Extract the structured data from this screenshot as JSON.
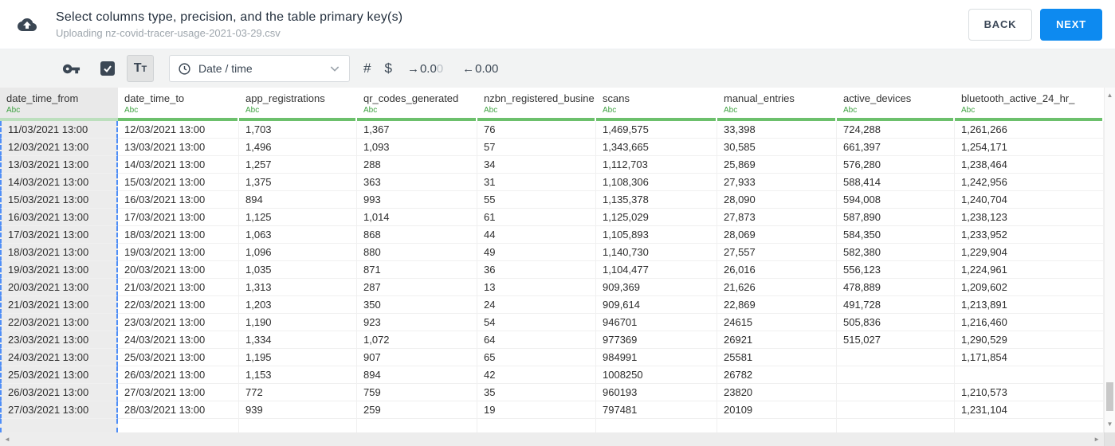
{
  "header": {
    "title": "Select columns type, precision, and the table primary key(s)",
    "subtitle": "Uploading nz-covid-tracer-usage-2021-03-29.csv",
    "back_label": "BACK",
    "next_label": "NEXT"
  },
  "toolbar": {
    "text_type_button": "Tt",
    "type_dropdown_value": "Date / time",
    "number_symbol": "#",
    "currency_symbol": "$",
    "precision_increase": {
      "arrow": "→",
      "value": "0.0",
      "muted": "0"
    },
    "precision_decrease": {
      "arrow": "←",
      "value": "0.00"
    },
    "primary_key_checkbox_checked": true
  },
  "icons": {
    "upload_icon": "cloud-upload",
    "key_icon": "key",
    "checkbox_check_icon": "✓",
    "clock_icon": "clock",
    "chevron_down_icon": "⌄",
    "scroll_up_icon": "▲",
    "scroll_down_icon": "▼",
    "scroll_left_icon": "◄",
    "scroll_right_icon": "►"
  },
  "table": {
    "columns": [
      {
        "name": "date_time_from",
        "type": "Abc",
        "selected": true
      },
      {
        "name": "date_time_to",
        "type": "Abc",
        "selected": false
      },
      {
        "name": "app_registrations",
        "type": "Abc",
        "selected": false
      },
      {
        "name": "qr_codes_generated",
        "type": "Abc",
        "selected": false
      },
      {
        "name": "nzbn_registered_busine",
        "type": "Abc",
        "selected": false
      },
      {
        "name": "scans",
        "type": "Abc",
        "selected": false
      },
      {
        "name": "manual_entries",
        "type": "Abc",
        "selected": false
      },
      {
        "name": "active_devices",
        "type": "Abc",
        "selected": false
      },
      {
        "name": "bluetooth_active_24_hr_",
        "type": "Abc",
        "selected": false
      }
    ],
    "rows": [
      [
        "11/03/2021 13:00",
        "12/03/2021 13:00",
        "1,703",
        "1,367",
        "76",
        "1,469,575",
        "33,398",
        "724,288",
        "1,261,266"
      ],
      [
        "12/03/2021 13:00",
        "13/03/2021 13:00",
        "1,496",
        "1,093",
        "57",
        "1,343,665",
        "30,585",
        "661,397",
        "1,254,171"
      ],
      [
        "13/03/2021 13:00",
        "14/03/2021 13:00",
        "1,257",
        "288",
        "34",
        "1,112,703",
        "25,869",
        "576,280",
        "1,238,464"
      ],
      [
        "14/03/2021 13:00",
        "15/03/2021 13:00",
        "1,375",
        "363",
        "31",
        "1,108,306",
        "27,933",
        "588,414",
        "1,242,956"
      ],
      [
        "15/03/2021 13:00",
        "16/03/2021 13:00",
        "894",
        "993",
        "55",
        "1,135,378",
        "28,090",
        "594,008",
        "1,240,704"
      ],
      [
        "16/03/2021 13:00",
        "17/03/2021 13:00",
        "1,125",
        "1,014",
        "61",
        "1,125,029",
        "27,873",
        "587,890",
        "1,238,123"
      ],
      [
        "17/03/2021 13:00",
        "18/03/2021 13:00",
        "1,063",
        "868",
        "44",
        "1,105,893",
        "28,069",
        "584,350",
        "1,233,952"
      ],
      [
        "18/03/2021 13:00",
        "19/03/2021 13:00",
        "1,096",
        "880",
        "49",
        "1,140,730",
        "27,557",
        "582,380",
        "1,229,904"
      ],
      [
        "19/03/2021 13:00",
        "20/03/2021 13:00",
        "1,035",
        "871",
        "36",
        "1,104,477",
        "26,016",
        "556,123",
        "1,224,961"
      ],
      [
        "20/03/2021 13:00",
        "21/03/2021 13:00",
        "1,313",
        "287",
        "13",
        "909,369",
        "21,626",
        "478,889",
        "1,209,602"
      ],
      [
        "21/03/2021 13:00",
        "22/03/2021 13:00",
        "1,203",
        "350",
        "24",
        "909,614",
        "22,869",
        "491,728",
        "1,213,891"
      ],
      [
        "22/03/2021 13:00",
        "23/03/2021 13:00",
        "1,190",
        "923",
        "54",
        "946701",
        "24615",
        "505,836",
        "1,216,460"
      ],
      [
        "23/03/2021 13:00",
        "24/03/2021 13:00",
        "1,334",
        "1,072",
        "64",
        "977369",
        "26921",
        "515,027",
        "1,290,529"
      ],
      [
        "24/03/2021 13:00",
        "25/03/2021 13:00",
        "1,195",
        "907",
        "65",
        "984991",
        "25581",
        "",
        "1,171,854"
      ],
      [
        "25/03/2021 13:00",
        "26/03/2021 13:00",
        "1,153",
        "894",
        "42",
        "1008250",
        "26782",
        "",
        ""
      ],
      [
        "26/03/2021 13:00",
        "27/03/2021 13:00",
        "772",
        "759",
        "35",
        "960193",
        "23820",
        "",
        "1,210,573"
      ],
      [
        "27/03/2021 13:00",
        "28/03/2021 13:00",
        "939",
        "259",
        "19",
        "797481",
        "20109",
        "",
        "1,231,104"
      ]
    ]
  },
  "colors": {
    "accent_blue": "#0d8af0",
    "type_green": "#3fa142",
    "header_underline_green": "#6cc06c",
    "header_underline_green_selected": "#bcdfbd",
    "selection_dash_blue": "#4f8ef7",
    "dark_slate": "#3b4754"
  }
}
